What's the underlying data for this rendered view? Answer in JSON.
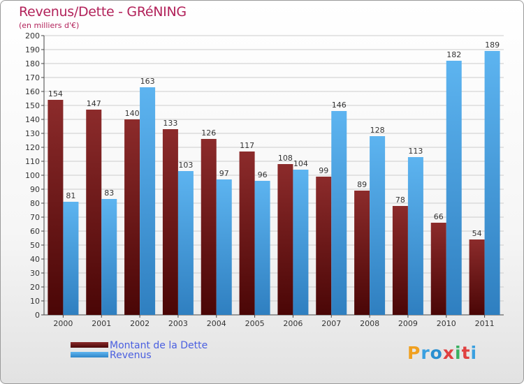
{
  "title": "Revenus/Dette - GRéNING",
  "subtitle": "(en milliers d'€)",
  "logo": [
    "P",
    "r",
    "o",
    "x",
    "i",
    "t",
    "i"
  ],
  "logo_colors": [
    "#f0a020",
    "#3aa0e0",
    "#2a8fd0",
    "#e04040",
    "#3ab060",
    "#e04040",
    "#3aa0e0"
  ],
  "colors": {
    "dette": "#7a1f1f",
    "revenus": "#4aa3e6",
    "grid": "#cccccc",
    "axis": "#444444"
  },
  "chart_data": {
    "type": "bar",
    "title": "Revenus/Dette - GRéNING",
    "ylabel": "(en milliers d'€)",
    "xlabel": "",
    "ylim": [
      0,
      200
    ],
    "ytick_step": 10,
    "categories": [
      "2000",
      "2001",
      "2002",
      "2003",
      "2004",
      "2005",
      "2006",
      "2007",
      "2008",
      "2009",
      "2010",
      "2011"
    ],
    "series": [
      {
        "name": "Montant de la Dette",
        "values": [
          154,
          147,
          140,
          133,
          126,
          117,
          108,
          99,
          89,
          78,
          66,
          54
        ]
      },
      {
        "name": "Revenus",
        "values": [
          81,
          83,
          163,
          103,
          97,
          96,
          104,
          146,
          128,
          113,
          182,
          189
        ]
      }
    ],
    "legend_position": "bottom-left"
  }
}
